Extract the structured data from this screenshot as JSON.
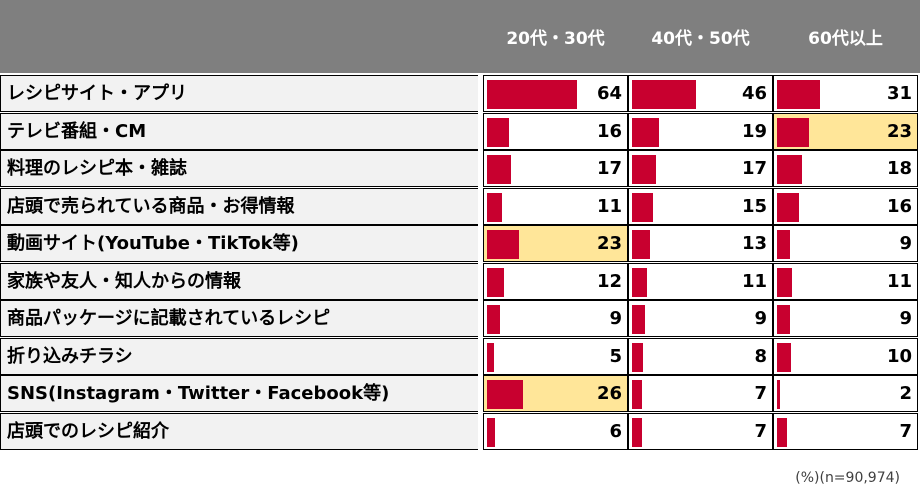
{
  "chart_data": {
    "type": "table",
    "columns": [
      "20代・30代",
      "40代・50代",
      "60代以上"
    ],
    "rows": [
      {
        "label": "レシピサイト・アプリ",
        "values": [
          64,
          46,
          31
        ],
        "highlight": [
          false,
          false,
          false
        ]
      },
      {
        "label": "テレビ番組・CM",
        "values": [
          16,
          19,
          23
        ],
        "highlight": [
          false,
          false,
          true
        ]
      },
      {
        "label": "料理のレシピ本・雑誌",
        "values": [
          17,
          17,
          18
        ],
        "highlight": [
          false,
          false,
          false
        ]
      },
      {
        "label": "店頭で売られている商品・お得情報",
        "values": [
          11,
          15,
          16
        ],
        "highlight": [
          false,
          false,
          false
        ]
      },
      {
        "label": "動画サイト(YouTube・TikTok等)",
        "values": [
          23,
          13,
          9
        ],
        "highlight": [
          true,
          false,
          false
        ]
      },
      {
        "label": "家族や友人・知人からの情報",
        "values": [
          12,
          11,
          11
        ],
        "highlight": [
          false,
          false,
          false
        ]
      },
      {
        "label": "商品パッケージに記載されているレシピ",
        "values": [
          9,
          9,
          9
        ],
        "highlight": [
          false,
          false,
          false
        ]
      },
      {
        "label": "折り込みチラシ",
        "values": [
          5,
          8,
          10
        ],
        "highlight": [
          false,
          false,
          false
        ]
      },
      {
        "label": "SNS(Instagram・Twitter・Facebook等)",
        "values": [
          26,
          7,
          2
        ],
        "highlight": [
          true,
          false,
          false
        ]
      },
      {
        "label": "店頭でのレシピ紹介",
        "values": [
          6,
          7,
          7
        ],
        "highlight": [
          false,
          false,
          false
        ]
      }
    ],
    "bar_max": 100,
    "bar_color": "#c8002f",
    "highlight_color": "#ffe699",
    "header_color": "#7f7f7f"
  },
  "footnote": "(%)(n=90,974)"
}
